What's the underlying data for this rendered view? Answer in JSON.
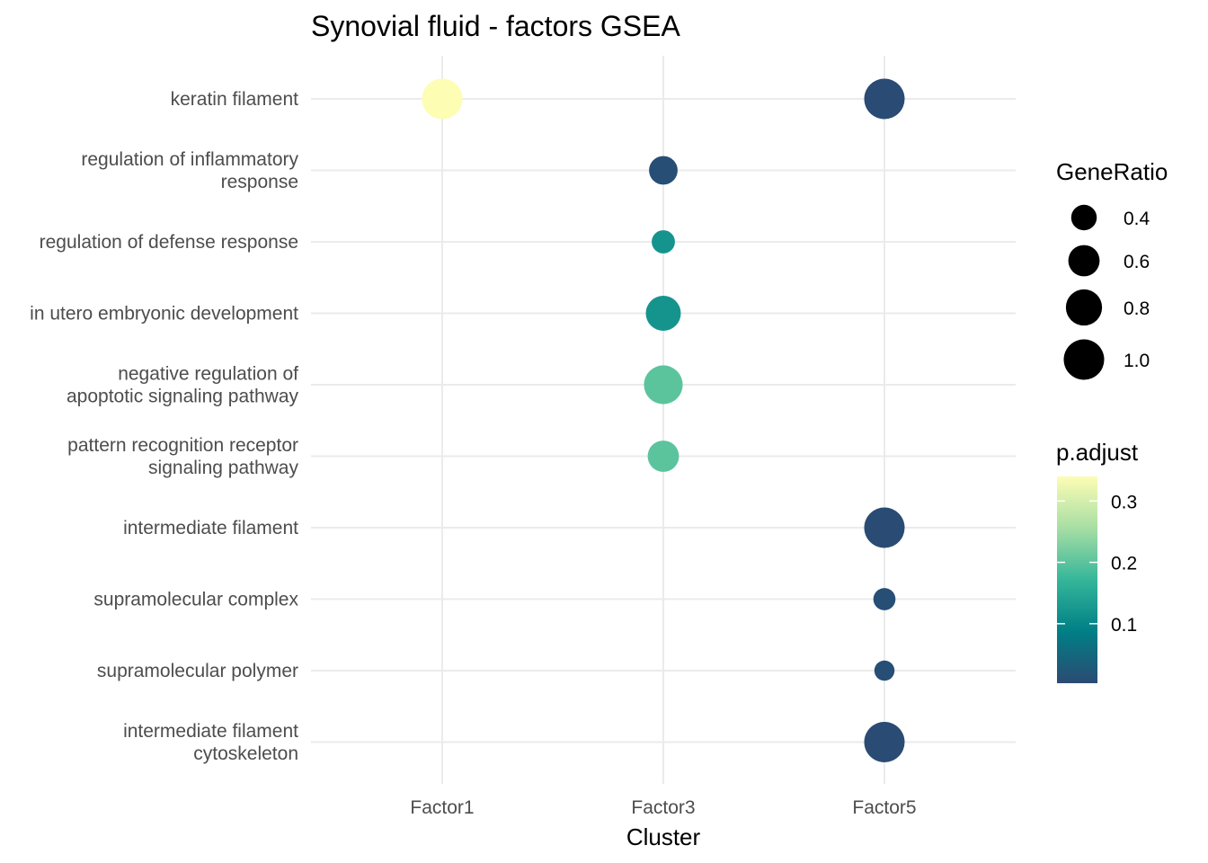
{
  "chart_data": {
    "type": "scatter",
    "title": "Synovial fluid - factors GSEA",
    "xlabel": "Cluster",
    "ylabel": "",
    "categories": [
      "Factor1",
      "Factor3",
      "Factor5"
    ],
    "terms": [
      [
        "keratin filament"
      ],
      [
        "regulation of inflammatory",
        "response"
      ],
      [
        "regulation of defense response"
      ],
      [
        "in utero embryonic development"
      ],
      [
        "negative regulation of",
        "apoptotic signaling pathway"
      ],
      [
        "pattern recognition receptor",
        "signaling pathway"
      ],
      [
        "intermediate filament"
      ],
      [
        "supramolecular complex"
      ],
      [
        "supramolecular polymer"
      ],
      [
        "intermediate filament",
        "cytoskeleton"
      ]
    ],
    "points": [
      {
        "term": 0,
        "cluster": "Factor1",
        "gene_ratio": 1.0,
        "p_adjust": 0.34
      },
      {
        "term": 0,
        "cluster": "Factor5",
        "gene_ratio": 1.0,
        "p_adjust": 0.005
      },
      {
        "term": 1,
        "cluster": "Factor3",
        "gene_ratio": 0.5,
        "p_adjust": 0.01
      },
      {
        "term": 2,
        "cluster": "Factor3",
        "gene_ratio": 0.33,
        "p_adjust": 0.12
      },
      {
        "term": 3,
        "cluster": "Factor3",
        "gene_ratio": 0.75,
        "p_adjust": 0.12
      },
      {
        "term": 4,
        "cluster": "Factor3",
        "gene_ratio": 0.92,
        "p_adjust": 0.2
      },
      {
        "term": 5,
        "cluster": "Factor3",
        "gene_ratio": 0.6,
        "p_adjust": 0.2
      },
      {
        "term": 6,
        "cluster": "Factor5",
        "gene_ratio": 1.0,
        "p_adjust": 0.005
      },
      {
        "term": 7,
        "cluster": "Factor5",
        "gene_ratio": 0.3,
        "p_adjust": 0.01
      },
      {
        "term": 8,
        "cluster": "Factor5",
        "gene_ratio": 0.25,
        "p_adjust": 0.01
      },
      {
        "term": 9,
        "cluster": "Factor5",
        "gene_ratio": 1.0,
        "p_adjust": 0.005
      }
    ],
    "size_legend": {
      "title": "GeneRatio",
      "values": [
        0.4,
        0.6,
        0.8,
        1.0
      ],
      "labels": [
        "0.4",
        "0.6",
        "0.8",
        "1.0"
      ]
    },
    "color_legend": {
      "title": "p.adjust",
      "range": [
        0.003,
        0.34
      ],
      "ticks": [
        0.1,
        0.2,
        0.3
      ],
      "labels": [
        "0.1",
        "0.2",
        "0.3"
      ],
      "colormap": [
        "#2b4a73",
        "#007f86",
        "#35b69a",
        "#a7dea4",
        "#fdfdb4"
      ]
    },
    "grid": true,
    "legend_position": "right"
  }
}
